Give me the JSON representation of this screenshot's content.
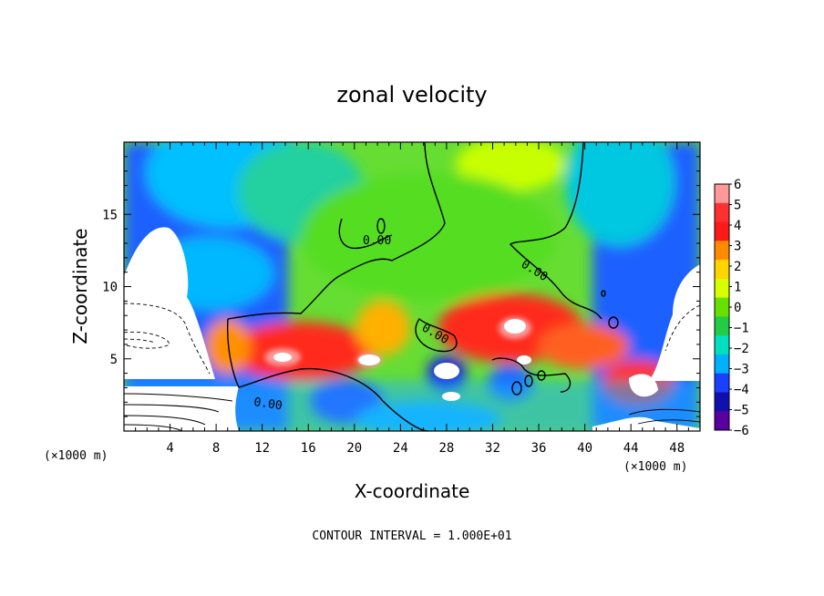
{
  "chart_data": {
    "type": "heatmap",
    "title": "zonal velocity",
    "xlabel": "X-coordinate",
    "ylabel": "Z-coordinate",
    "x_unit": "(×1000 m)",
    "x_unit_right": "(×1000 m)",
    "xlim": [
      0,
      50
    ],
    "ylim": [
      0,
      20
    ],
    "x_ticks": [
      4,
      8,
      12,
      16,
      20,
      24,
      28,
      32,
      36,
      40,
      44,
      48
    ],
    "y_ticks": [
      5,
      10,
      15
    ],
    "colorbar": {
      "ticks": [
        6,
        5,
        4,
        3,
        2,
        1,
        0,
        -1,
        -2,
        -3,
        -4,
        -5,
        -6
      ],
      "colors": [
        "#ff9999",
        "#ff3030",
        "#ff1a1a",
        "#ff8c00",
        "#ffd400",
        "#d8ff00",
        "#66e000",
        "#22cc44",
        "#00e0c0",
        "#00b0ff",
        "#1a40ff",
        "#1010b0",
        "#5a00a0"
      ]
    },
    "contour_labels": [
      "0.00",
      "0.00",
      "0.00",
      "0.00"
    ],
    "footer": "CONTOUR INTERVAL = 1.000E+01"
  }
}
